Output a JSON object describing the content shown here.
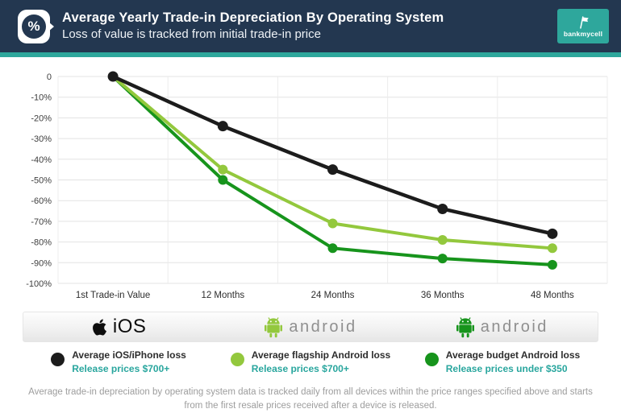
{
  "header": {
    "title": "Average Yearly Trade-in Depreciation By Operating System",
    "subtitle": "Loss of value is tracked from initial trade-in price",
    "badge_glyph": "%",
    "brand": "bankmycell"
  },
  "colors": {
    "header_bg": "#233750",
    "accent_teal": "#2ea79c",
    "legend_sub_teal": "#29a69e",
    "ios_line": "#1c1c1c",
    "flagship_line": "#93c83d",
    "budget_line": "#17941c",
    "grid_line": "#e3e3e3",
    "grid_line_vertical": "#ececec"
  },
  "chart_data": {
    "type": "line",
    "title": "Average Yearly Trade-in Depreciation By Operating System",
    "categories": [
      "1st Trade-in Value",
      "12 Months",
      "24 Months",
      "36 Months",
      "48 Months"
    ],
    "series": [
      {
        "name": "Average iOS/iPhone loss",
        "color": "#1c1c1c",
        "values": [
          0,
          -24,
          -45,
          -64,
          -76
        ]
      },
      {
        "name": "Average flagship Android loss",
        "color": "#93c83d",
        "values": [
          0,
          -45,
          -71,
          -79,
          -83
        ]
      },
      {
        "name": "Average budget Android loss",
        "color": "#17941c",
        "values": [
          0,
          -50,
          -83,
          -88,
          -91
        ]
      }
    ],
    "ylim": [
      -100,
      0
    ],
    "ytick_labels": [
      "0",
      "-10%",
      "-20%",
      "-30%",
      "-40%",
      "-50%",
      "-60%",
      "-70%",
      "-80%",
      "-90%",
      "-100%"
    ],
    "grid": true,
    "legend_position": "bottom"
  },
  "os_row": {
    "ios_label": "iOS",
    "android_flagship_label": "android",
    "android_budget_label": "android"
  },
  "legend": {
    "items": [
      {
        "label": "Average iOS/iPhone loss",
        "sublabel": "Release prices $700+",
        "color": "#1c1c1c"
      },
      {
        "label": "Average flagship Android loss",
        "sublabel": "Release prices $700+",
        "color": "#93c83d"
      },
      {
        "label": "Average budget Android loss",
        "sublabel": "Release prices under $350",
        "color": "#17941c"
      }
    ]
  },
  "footer": {
    "note": "Average trade-in depreciation by operating system data is tracked daily from all devices within the price ranges specified above and starts from the first resale prices received after a device is released."
  }
}
